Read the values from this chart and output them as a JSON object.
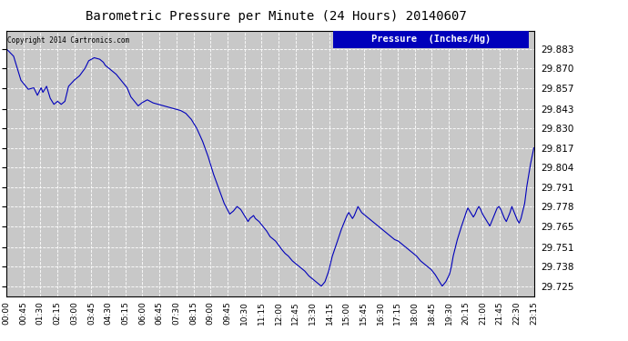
{
  "title": "Barometric Pressure per Minute (24 Hours) 20140607",
  "copyright_text": "Copyright 2014 Cartronics.com",
  "legend_text": "Pressure  (Inches/Hg)",
  "line_color": "#0000BB",
  "background_color": "#FFFFFF",
  "plot_bg_color": "#C8C8C8",
  "grid_color": "#FFFFFF",
  "yticks": [
    29.725,
    29.738,
    29.751,
    29.765,
    29.778,
    29.791,
    29.804,
    29.817,
    29.83,
    29.843,
    29.857,
    29.87,
    29.883
  ],
  "ylim": [
    29.718,
    29.895
  ],
  "xtick_labels": [
    "00:00",
    "00:45",
    "01:30",
    "02:15",
    "03:00",
    "03:45",
    "04:30",
    "05:15",
    "06:00",
    "06:45",
    "07:30",
    "08:15",
    "09:00",
    "09:45",
    "10:30",
    "11:15",
    "12:00",
    "12:45",
    "13:30",
    "14:15",
    "15:00",
    "15:45",
    "16:30",
    "17:15",
    "18:00",
    "18:45",
    "19:30",
    "20:15",
    "21:00",
    "21:45",
    "22:30",
    "23:15"
  ],
  "key_points": [
    [
      0,
      29.883
    ],
    [
      20,
      29.878
    ],
    [
      40,
      29.862
    ],
    [
      60,
      29.856
    ],
    [
      75,
      29.857
    ],
    [
      85,
      29.852
    ],
    [
      95,
      29.857
    ],
    [
      100,
      29.854
    ],
    [
      110,
      29.858
    ],
    [
      120,
      29.85
    ],
    [
      130,
      29.846
    ],
    [
      140,
      29.848
    ],
    [
      150,
      29.846
    ],
    [
      160,
      29.848
    ],
    [
      170,
      29.858
    ],
    [
      185,
      29.862
    ],
    [
      200,
      29.865
    ],
    [
      215,
      29.87
    ],
    [
      225,
      29.875
    ],
    [
      240,
      29.877
    ],
    [
      255,
      29.876
    ],
    [
      265,
      29.874
    ],
    [
      270,
      29.872
    ],
    [
      280,
      29.87
    ],
    [
      290,
      29.868
    ],
    [
      300,
      29.866
    ],
    [
      310,
      29.863
    ],
    [
      320,
      29.86
    ],
    [
      330,
      29.857
    ],
    [
      340,
      29.851
    ],
    [
      350,
      29.848
    ],
    [
      360,
      29.845
    ],
    [
      370,
      29.847
    ],
    [
      385,
      29.849
    ],
    [
      400,
      29.847
    ],
    [
      415,
      29.846
    ],
    [
      430,
      29.845
    ],
    [
      445,
      29.844
    ],
    [
      460,
      29.843
    ],
    [
      475,
      29.842
    ],
    [
      490,
      29.84
    ],
    [
      505,
      29.836
    ],
    [
      520,
      29.83
    ],
    [
      535,
      29.822
    ],
    [
      550,
      29.812
    ],
    [
      565,
      29.8
    ],
    [
      580,
      29.79
    ],
    [
      595,
      29.78
    ],
    [
      610,
      29.773
    ],
    [
      620,
      29.775
    ],
    [
      630,
      29.778
    ],
    [
      640,
      29.776
    ],
    [
      650,
      29.772
    ],
    [
      660,
      29.768
    ],
    [
      665,
      29.77
    ],
    [
      675,
      29.772
    ],
    [
      680,
      29.77
    ],
    [
      690,
      29.768
    ],
    [
      700,
      29.765
    ],
    [
      710,
      29.762
    ],
    [
      720,
      29.758
    ],
    [
      735,
      29.755
    ],
    [
      750,
      29.75
    ],
    [
      760,
      29.747
    ],
    [
      770,
      29.745
    ],
    [
      780,
      29.742
    ],
    [
      790,
      29.74
    ],
    [
      800,
      29.738
    ],
    [
      815,
      29.735
    ],
    [
      825,
      29.732
    ],
    [
      835,
      29.73
    ],
    [
      845,
      29.728
    ],
    [
      855,
      29.726
    ],
    [
      860,
      29.725
    ],
    [
      870,
      29.728
    ],
    [
      880,
      29.735
    ],
    [
      890,
      29.745
    ],
    [
      900,
      29.752
    ],
    [
      908,
      29.758
    ],
    [
      915,
      29.763
    ],
    [
      920,
      29.766
    ],
    [
      925,
      29.769
    ],
    [
      930,
      29.772
    ],
    [
      935,
      29.774
    ],
    [
      940,
      29.772
    ],
    [
      945,
      29.77
    ],
    [
      950,
      29.772
    ],
    [
      955,
      29.775
    ],
    [
      960,
      29.778
    ],
    [
      965,
      29.776
    ],
    [
      970,
      29.774
    ],
    [
      980,
      29.772
    ],
    [
      990,
      29.77
    ],
    [
      1000,
      29.768
    ],
    [
      1010,
      29.766
    ],
    [
      1020,
      29.764
    ],
    [
      1030,
      29.762
    ],
    [
      1040,
      29.76
    ],
    [
      1050,
      29.758
    ],
    [
      1060,
      29.756
    ],
    [
      1070,
      29.755
    ],
    [
      1080,
      29.753
    ],
    [
      1090,
      29.751
    ],
    [
      1100,
      29.749
    ],
    [
      1110,
      29.747
    ],
    [
      1120,
      29.745
    ],
    [
      1130,
      29.742
    ],
    [
      1140,
      29.74
    ],
    [
      1150,
      29.738
    ],
    [
      1160,
      29.736
    ],
    [
      1170,
      29.733
    ],
    [
      1175,
      29.731
    ],
    [
      1180,
      29.729
    ],
    [
      1185,
      29.727
    ],
    [
      1190,
      29.725
    ],
    [
      1200,
      29.728
    ],
    [
      1210,
      29.733
    ],
    [
      1215,
      29.738
    ],
    [
      1220,
      29.745
    ],
    [
      1230,
      29.755
    ],
    [
      1240,
      29.763
    ],
    [
      1250,
      29.77
    ],
    [
      1255,
      29.774
    ],
    [
      1260,
      29.777
    ],
    [
      1265,
      29.775
    ],
    [
      1270,
      29.773
    ],
    [
      1275,
      29.771
    ],
    [
      1280,
      29.773
    ],
    [
      1285,
      29.776
    ],
    [
      1290,
      29.778
    ],
    [
      1295,
      29.776
    ],
    [
      1300,
      29.773
    ],
    [
      1305,
      29.771
    ],
    [
      1310,
      29.769
    ],
    [
      1315,
      29.767
    ],
    [
      1320,
      29.765
    ],
    [
      1325,
      29.768
    ],
    [
      1330,
      29.771
    ],
    [
      1335,
      29.774
    ],
    [
      1340,
      29.777
    ],
    [
      1345,
      29.778
    ],
    [
      1350,
      29.776
    ],
    [
      1355,
      29.773
    ],
    [
      1360,
      29.77
    ],
    [
      1365,
      29.768
    ],
    [
      1370,
      29.771
    ],
    [
      1375,
      29.774
    ],
    [
      1380,
      29.778
    ],
    [
      1385,
      29.775
    ],
    [
      1390,
      29.772
    ],
    [
      1395,
      29.769
    ],
    [
      1400,
      29.767
    ],
    [
      1405,
      29.77
    ],
    [
      1410,
      29.775
    ],
    [
      1415,
      29.78
    ],
    [
      1420,
      29.79
    ],
    [
      1430,
      29.805
    ],
    [
      1440,
      29.817
    ]
  ]
}
